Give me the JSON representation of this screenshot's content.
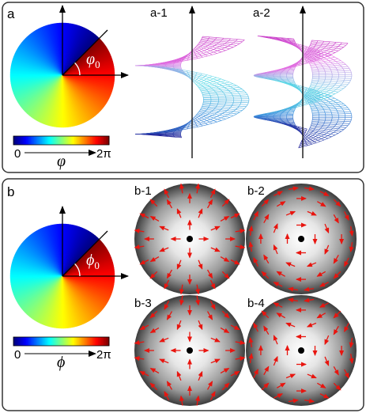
{
  "panels": [
    {
      "label": "a",
      "subpanels": [
        "a-1",
        "a-2"
      ],
      "angle_symbol": "φ",
      "angle_subscript": "0",
      "colorbar": {
        "min_label": "0",
        "max_label": "2π",
        "symbol": "φ"
      }
    },
    {
      "label": "b",
      "subpanels": [
        "b-1",
        "b-2",
        "b-3",
        "b-4"
      ],
      "angle_symbol": "ϕ",
      "angle_subscript": "0",
      "colorbar": {
        "min_label": "0",
        "max_label": "2π",
        "symbol": "ϕ"
      }
    }
  ]
}
